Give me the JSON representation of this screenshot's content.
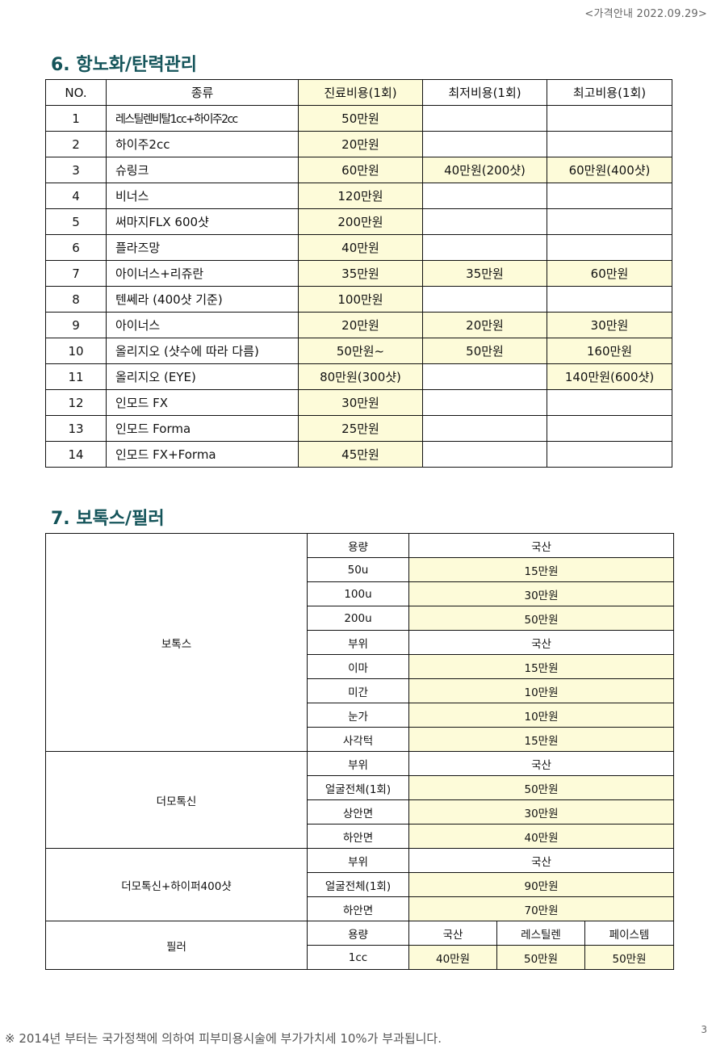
{
  "header": {
    "date_label": "<가격안내 2022.09.29>"
  },
  "section6": {
    "title": "6. 항노화/탄력관리",
    "headers": [
      "NO.",
      "종류",
      "진료비용(1회)",
      "최저비용(1회)",
      "최고비용(1회)"
    ],
    "rows": [
      [
        "1",
        "레스틸렌비탈1cc+하이주2cc",
        "50만원",
        "",
        ""
      ],
      [
        "2",
        "하이주2cc",
        "20만원",
        "",
        ""
      ],
      [
        "3",
        "슈링크",
        "60만원",
        "40만원(200샷)",
        "60만원(400샷)"
      ],
      [
        "4",
        "비너스",
        "120만원",
        "",
        ""
      ],
      [
        "5",
        "써마지FLX 600샷",
        "200만원",
        "",
        ""
      ],
      [
        "6",
        "플라즈망",
        "40만원",
        "",
        ""
      ],
      [
        "7",
        "아이너스+리쥬란",
        "35만원",
        "35만원",
        "60만원"
      ],
      [
        "8",
        "텐쎄라 (400샷 기준)",
        "100만원",
        "",
        ""
      ],
      [
        "9",
        "아이너스",
        "20만원",
        "20만원",
        "30만원"
      ],
      [
        "10",
        "올리지오 (샷수에 따라 다름)",
        "50만원~",
        "50만원",
        "160만원"
      ],
      [
        "11",
        "올리지오 (EYE)",
        "80만원(300샷)",
        "",
        "140만원(600샷)"
      ],
      [
        "12",
        "인모드 FX",
        "30만원",
        "",
        ""
      ],
      [
        "13",
        "인모드 Forma",
        "25만원",
        "",
        ""
      ],
      [
        "14",
        "인모드 FX+Forma",
        "45만원",
        "",
        ""
      ]
    ]
  },
  "section7": {
    "title": "7. 보톡스/필러",
    "botox": {
      "label": "보톡스",
      "rows": [
        [
          "용량",
          "국산"
        ],
        [
          "50u",
          "15만원"
        ],
        [
          "100u",
          "30만원"
        ],
        [
          "200u",
          "50만원"
        ],
        [
          "부위",
          "국산"
        ],
        [
          "이마",
          "15만원"
        ],
        [
          "미간",
          "10만원"
        ],
        [
          "눈가",
          "10만원"
        ],
        [
          "사각턱",
          "15만원"
        ]
      ]
    },
    "dermotoxin": {
      "label": "더모톡신",
      "rows": [
        [
          "부위",
          "국산"
        ],
        [
          "얼굴전체(1회)",
          "50만원"
        ],
        [
          "상안면",
          "30만원"
        ],
        [
          "하안면",
          "40만원"
        ]
      ]
    },
    "dermotoxin_hyfu": {
      "label": "더모톡신+하이퍼400샷",
      "rows": [
        [
          "부위",
          "국산"
        ],
        [
          "얼굴전체(1회)",
          "90만원"
        ],
        [
          "하안면",
          "70만원"
        ]
      ]
    },
    "filler": {
      "label": "필러",
      "header": [
        "용량",
        "국산",
        "레스틸렌",
        "페이스템"
      ],
      "row": [
        "1cc",
        "40만원",
        "50만원",
        "50만원"
      ]
    }
  },
  "footer": {
    "note": "※ 2014년 부터는 국가정책에 의하여 피부미용시술에 부가가치세 10%가 부과됩니다.",
    "page_number": "3"
  }
}
